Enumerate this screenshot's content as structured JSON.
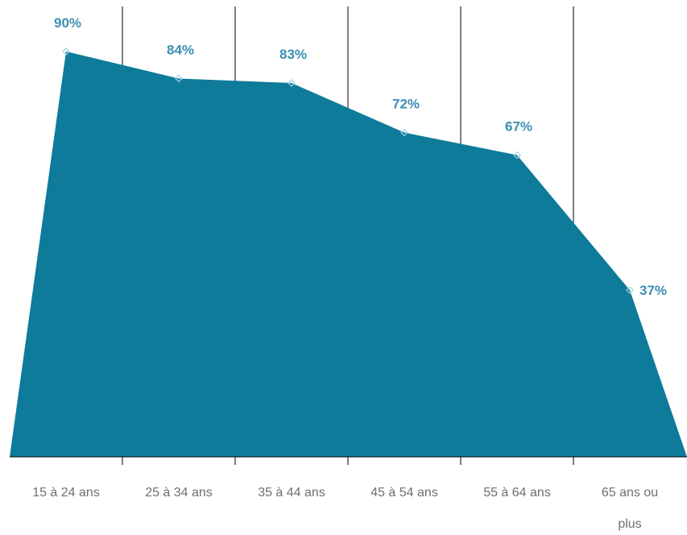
{
  "chart_data": {
    "type": "area",
    "categories": [
      "15 à 24 ans",
      "25 à 34 ans",
      "35 à 44 ans",
      "45 à 54 ans",
      "55 à 64 ans",
      "65 ans ou plus"
    ],
    "values": [
      90,
      84,
      83,
      72,
      67,
      37
    ],
    "value_labels": [
      "90%",
      "84%",
      "83%",
      "72%",
      "67%",
      "37%"
    ],
    "ylim": [
      0,
      100
    ],
    "colors": {
      "fill": "#0e7b9a",
      "label": "#3b8fb2",
      "axis": "#000000",
      "tick_text": "#6f6f6f"
    }
  }
}
